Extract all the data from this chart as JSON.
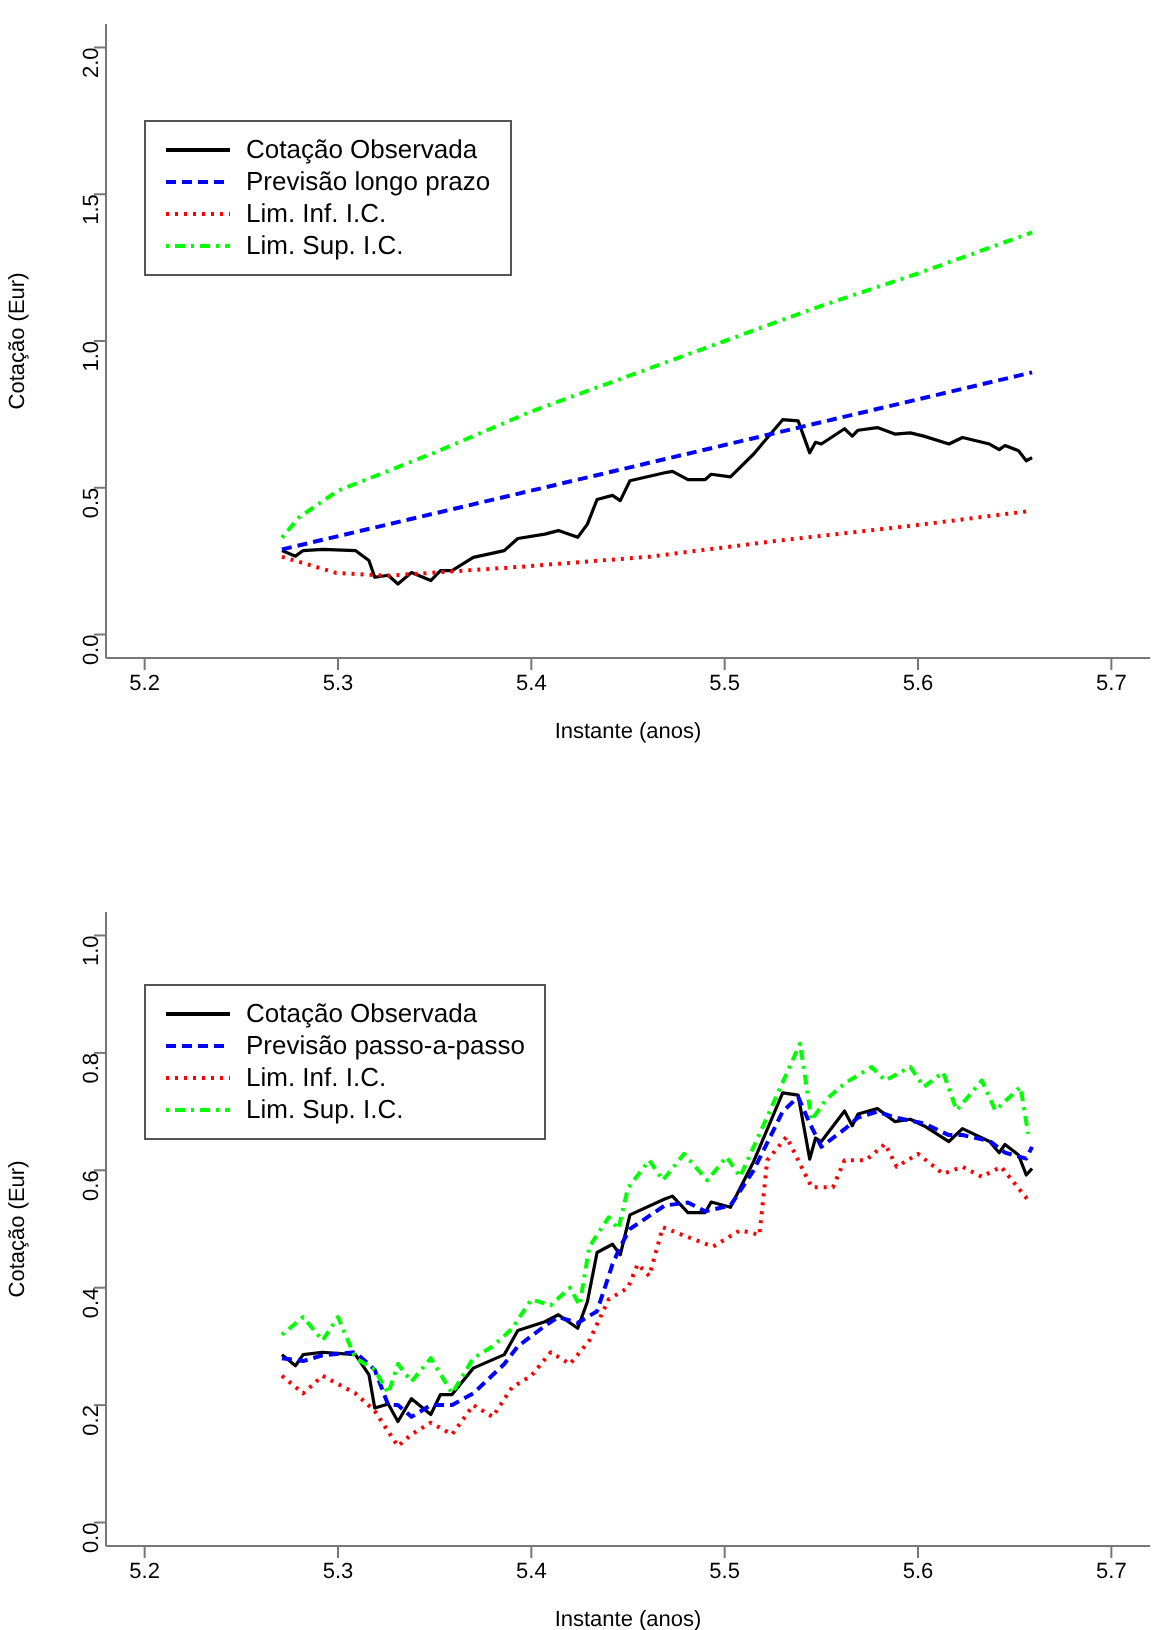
{
  "chart_data": [
    {
      "type": "line",
      "xlabel": "Instante (anos)",
      "ylabel": "Cotação (Eur)",
      "xlim": [
        5.18,
        5.72
      ],
      "xticks": [
        5.2,
        5.3,
        5.4,
        5.5,
        5.6,
        5.7
      ],
      "ylim": [
        -0.08,
        2.08
      ],
      "yticks": [
        {
          "value": 0,
          "label": "0.0"
        },
        0.5,
        {
          "value": 1,
          "label": "1.0"
        },
        1.5,
        {
          "value": 2,
          "label": "2.0"
        }
      ],
      "legend": "top left",
      "grid": false,
      "marker": "none",
      "series": [
        {
          "name": "Cotação Observada",
          "color": "#000000",
          "line_style": "solid",
          "x": [
            5.271,
            5.278,
            5.282,
            5.292,
            5.309,
            5.316,
            5.319,
            5.326,
            5.331,
            5.338,
            5.348,
            5.353,
            5.359,
            5.37,
            5.386,
            5.393,
            5.407,
            5.414,
            5.424,
            5.429,
            5.434,
            5.442,
            5.446,
            5.451,
            5.469,
            5.473,
            5.481,
            5.49,
            5.493,
            5.503,
            5.515,
            5.53,
            5.538,
            5.544,
            5.547,
            5.55,
            5.562,
            5.566,
            5.569,
            5.579,
            5.588,
            5.596,
            5.603,
            5.616,
            5.623,
            5.637,
            5.642,
            5.645,
            5.652,
            5.656,
            5.659
          ],
          "values": [
            0.286,
            0.267,
            0.286,
            0.29,
            0.286,
            0.252,
            0.195,
            0.202,
            0.172,
            0.211,
            0.184,
            0.218,
            0.218,
            0.263,
            0.286,
            0.327,
            0.342,
            0.354,
            0.331,
            0.376,
            0.46,
            0.474,
            0.456,
            0.524,
            0.551,
            0.556,
            0.528,
            0.528,
            0.546,
            0.537,
            0.615,
            0.732,
            0.728,
            0.619,
            0.655,
            0.649,
            0.701,
            0.676,
            0.696,
            0.705,
            0.683,
            0.687,
            0.676,
            0.649,
            0.671,
            0.649,
            0.63,
            0.644,
            0.626,
            0.592,
            0.603
          ]
        },
        {
          "name": "Previsão longo prazo",
          "color": "#0000ff",
          "line_style": "dashed",
          "x": [
            5.271,
            5.461,
            5.659
          ],
          "values": [
            0.29,
            0.585,
            0.893
          ]
        },
        {
          "name": "Lim. Inf. I.C.",
          "color": "#ff0000",
          "line_style": "dotted",
          "x": [
            5.271,
            5.299,
            5.325,
            5.393,
            5.461,
            5.528,
            5.596,
            5.657
          ],
          "values": [
            0.265,
            0.21,
            0.2,
            0.23,
            0.265,
            0.32,
            0.37,
            0.42
          ]
        },
        {
          "name": "Lim. Sup. I.C.",
          "color": "#00ff00",
          "line_style": "dashdot",
          "x": [
            5.271,
            5.28,
            5.3,
            5.35,
            5.4,
            5.45,
            5.5,
            5.55,
            5.6,
            5.659
          ],
          "values": [
            0.33,
            0.4,
            0.49,
            0.62,
            0.76,
            0.88,
            1.0,
            1.12,
            1.23,
            1.37
          ]
        }
      ]
    },
    {
      "type": "line",
      "xlabel": "Instante (anos)",
      "ylabel": "Cotação (Eur)",
      "xlim": [
        5.18,
        5.72
      ],
      "xticks": [
        5.2,
        5.3,
        5.4,
        5.5,
        5.6,
        5.7
      ],
      "ylim": [
        -0.04,
        1.04
      ],
      "yticks": [
        {
          "value": 0,
          "label": "0.0"
        },
        0.2,
        0.4,
        0.6,
        0.8,
        {
          "value": 1,
          "label": "1.0"
        }
      ],
      "legend": "top left",
      "grid": false,
      "marker": "none",
      "series": [
        {
          "name": "Cotação Observada",
          "color": "#000000",
          "line_style": "solid",
          "x": [
            5.271,
            5.278,
            5.282,
            5.292,
            5.309,
            5.316,
            5.319,
            5.326,
            5.331,
            5.338,
            5.348,
            5.353,
            5.359,
            5.37,
            5.386,
            5.393,
            5.407,
            5.414,
            5.424,
            5.429,
            5.434,
            5.442,
            5.446,
            5.451,
            5.469,
            5.473,
            5.481,
            5.49,
            5.493,
            5.503,
            5.515,
            5.53,
            5.538,
            5.544,
            5.547,
            5.55,
            5.562,
            5.566,
            5.569,
            5.579,
            5.588,
            5.596,
            5.603,
            5.616,
            5.623,
            5.637,
            5.642,
            5.645,
            5.652,
            5.656,
            5.659
          ],
          "values": [
            0.286,
            0.267,
            0.286,
            0.29,
            0.286,
            0.252,
            0.195,
            0.202,
            0.172,
            0.211,
            0.184,
            0.218,
            0.218,
            0.263,
            0.286,
            0.327,
            0.342,
            0.354,
            0.331,
            0.376,
            0.46,
            0.474,
            0.456,
            0.524,
            0.551,
            0.556,
            0.528,
            0.528,
            0.546,
            0.537,
            0.615,
            0.732,
            0.728,
            0.619,
            0.655,
            0.649,
            0.701,
            0.676,
            0.696,
            0.705,
            0.683,
            0.687,
            0.676,
            0.649,
            0.671,
            0.649,
            0.63,
            0.644,
            0.626,
            0.592,
            0.603
          ]
        },
        {
          "name": "Previsão passo-a-passo",
          "color": "#0000ff",
          "line_style": "dashed",
          "x": [
            5.271,
            5.282,
            5.292,
            5.309,
            5.319,
            5.326,
            5.331,
            5.338,
            5.348,
            5.359,
            5.37,
            5.386,
            5.393,
            5.407,
            5.414,
            5.424,
            5.434,
            5.442,
            5.446,
            5.451,
            5.469,
            5.481,
            5.49,
            5.503,
            5.515,
            5.53,
            5.538,
            5.544,
            5.55,
            5.562,
            5.569,
            5.579,
            5.588,
            5.603,
            5.616,
            5.623,
            5.637,
            5.645,
            5.656,
            5.659
          ],
          "values": [
            0.28,
            0.275,
            0.285,
            0.29,
            0.26,
            0.2,
            0.2,
            0.18,
            0.2,
            0.2,
            0.22,
            0.27,
            0.3,
            0.335,
            0.35,
            0.34,
            0.36,
            0.44,
            0.47,
            0.5,
            0.54,
            0.545,
            0.53,
            0.54,
            0.6,
            0.7,
            0.725,
            0.68,
            0.64,
            0.67,
            0.69,
            0.7,
            0.69,
            0.68,
            0.66,
            0.66,
            0.65,
            0.63,
            0.62,
            0.64
          ]
        },
        {
          "name": "Lim. Inf. I.C.",
          "color": "#ff0000",
          "line_style": "dotted",
          "x": [
            5.271,
            5.282,
            5.292,
            5.309,
            5.319,
            5.331,
            5.338,
            5.348,
            5.359,
            5.37,
            5.38,
            5.39,
            5.4,
            5.41,
            5.42,
            5.43,
            5.44,
            5.45,
            5.455,
            5.461,
            5.468,
            5.478,
            5.494,
            5.508,
            5.518,
            5.522,
            5.532,
            5.545,
            5.556,
            5.562,
            5.573,
            5.583,
            5.589,
            5.6,
            5.613,
            5.623,
            5.633,
            5.643,
            5.657
          ],
          "values": [
            0.25,
            0.22,
            0.25,
            0.22,
            0.19,
            0.13,
            0.15,
            0.17,
            0.15,
            0.2,
            0.18,
            0.23,
            0.25,
            0.29,
            0.27,
            0.31,
            0.38,
            0.4,
            0.44,
            0.42,
            0.503,
            0.49,
            0.47,
            0.498,
            0.49,
            0.617,
            0.657,
            0.571,
            0.571,
            0.617,
            0.617,
            0.645,
            0.606,
            0.628,
            0.594,
            0.606,
            0.589,
            0.606,
            0.549
          ]
        },
        {
          "name": "Lim. Sup. I.C.",
          "color": "#00ff00",
          "line_style": "dashdot",
          "x": [
            5.271,
            5.282,
            5.292,
            5.3,
            5.309,
            5.319,
            5.326,
            5.331,
            5.338,
            5.348,
            5.359,
            5.37,
            5.38,
            5.39,
            5.4,
            5.41,
            5.42,
            5.425,
            5.43,
            5.44,
            5.445,
            5.45,
            5.461,
            5.468,
            5.479,
            5.491,
            5.501,
            5.508,
            5.522,
            5.539,
            5.545,
            5.552,
            5.562,
            5.576,
            5.583,
            5.596,
            5.603,
            5.613,
            5.62,
            5.633,
            5.64,
            5.653,
            5.657
          ],
          "values": [
            0.32,
            0.35,
            0.31,
            0.35,
            0.28,
            0.26,
            0.22,
            0.27,
            0.24,
            0.28,
            0.22,
            0.28,
            0.3,
            0.33,
            0.38,
            0.37,
            0.4,
            0.37,
            0.47,
            0.52,
            0.5,
            0.57,
            0.617,
            0.583,
            0.628,
            0.583,
            0.623,
            0.589,
            0.691,
            0.816,
            0.685,
            0.719,
            0.748,
            0.776,
            0.753,
            0.776,
            0.742,
            0.767,
            0.702,
            0.753,
            0.702,
            0.742,
            0.662
          ]
        }
      ]
    }
  ]
}
